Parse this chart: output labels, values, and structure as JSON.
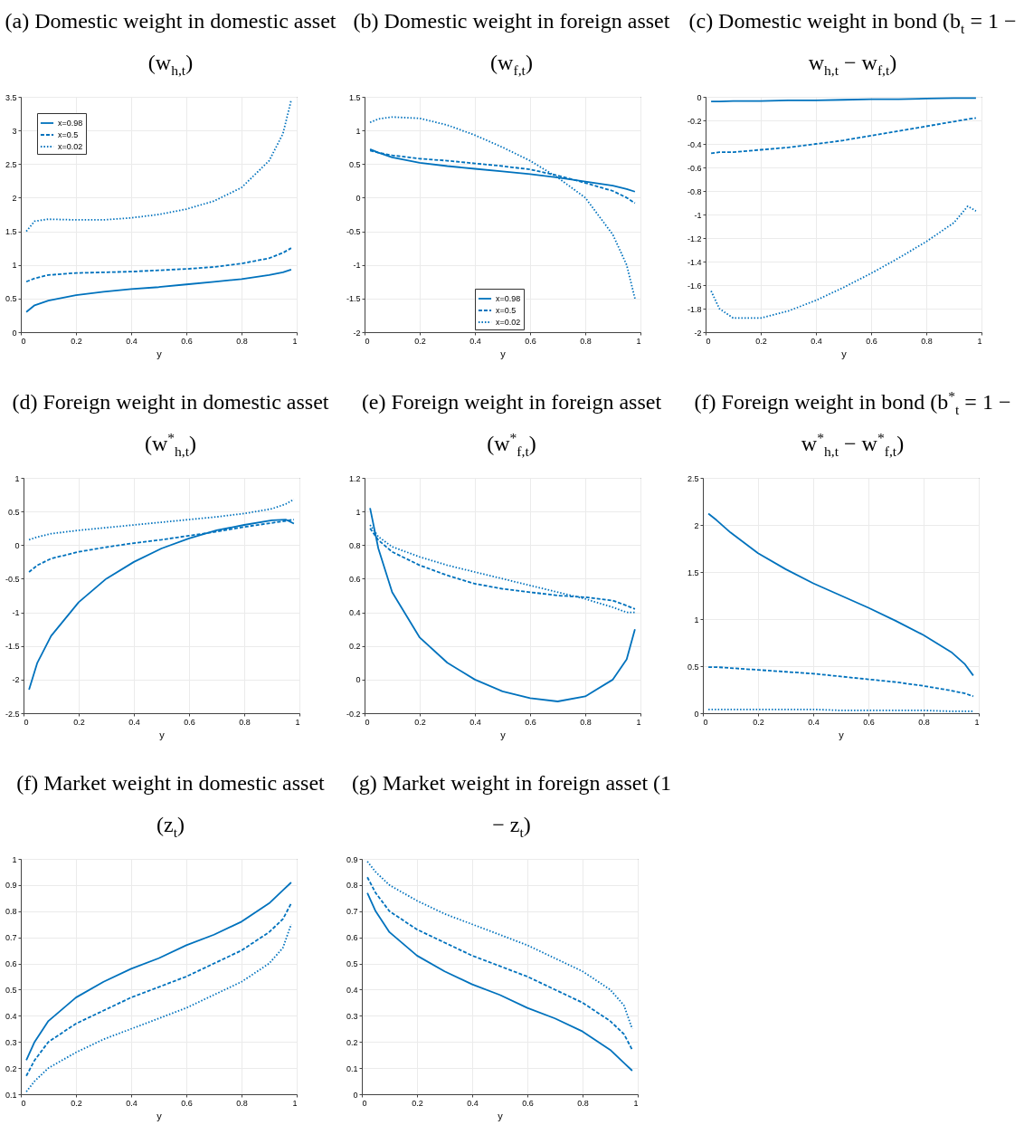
{
  "chart_data": [
    {
      "type": "line",
      "title": "(a) Domestic weight in domestic asset (w$_{h,t}$)",
      "xlabel": "y",
      "x": [
        0.02,
        0.05,
        0.1,
        0.2,
        0.3,
        0.4,
        0.5,
        0.6,
        0.7,
        0.8,
        0.9,
        0.95,
        0.98
      ],
      "xlim": [
        0,
        1
      ],
      "xticks": [
        0,
        0.2,
        0.4,
        0.6,
        0.8,
        1
      ],
      "ylim": [
        0,
        3.5
      ],
      "yticks": [
        0,
        0.5,
        1,
        1.5,
        2,
        2.5,
        3,
        3.5
      ],
      "grid": true,
      "legend": "top left",
      "series": [
        {
          "name": "x=0.98",
          "color": "#0072bd",
          "line_style": "solid",
          "values": [
            0.3,
            0.4,
            0.47,
            0.55,
            0.6,
            0.64,
            0.67,
            0.71,
            0.75,
            0.79,
            0.85,
            0.89,
            0.93
          ]
        },
        {
          "name": "x=0.5",
          "color": "#0072bd",
          "line_style": "dashed",
          "values": [
            0.75,
            0.8,
            0.85,
            0.88,
            0.89,
            0.9,
            0.92,
            0.94,
            0.97,
            1.02,
            1.1,
            1.18,
            1.25
          ]
        },
        {
          "name": "x=0.02",
          "color": "#0072bd",
          "line_style": "dotted",
          "values": [
            1.5,
            1.65,
            1.68,
            1.67,
            1.67,
            1.7,
            1.75,
            1.83,
            1.95,
            2.15,
            2.55,
            2.95,
            3.45
          ]
        }
      ]
    },
    {
      "type": "line",
      "title": "(b) Domestic weight in foreign asset (w$_{f,t}$)",
      "xlabel": "y",
      "x": [
        0.02,
        0.05,
        0.1,
        0.2,
        0.3,
        0.4,
        0.5,
        0.6,
        0.7,
        0.8,
        0.9,
        0.95,
        0.98
      ],
      "xlim": [
        0,
        1
      ],
      "xticks": [
        0,
        0.2,
        0.4,
        0.6,
        0.8,
        1
      ],
      "ylim": [
        -2,
        1.5
      ],
      "yticks": [
        -2,
        -1.5,
        -1,
        -0.5,
        0,
        0.5,
        1,
        1.5
      ],
      "grid": true,
      "legend": "bottom",
      "series": [
        {
          "name": "x=0.98",
          "color": "#0072bd",
          "line_style": "solid",
          "values": [
            0.72,
            0.67,
            0.6,
            0.52,
            0.47,
            0.43,
            0.39,
            0.35,
            0.3,
            0.24,
            0.18,
            0.13,
            0.09
          ]
        },
        {
          "name": "x=0.5",
          "color": "#0072bd",
          "line_style": "dashed",
          "values": [
            0.7,
            0.67,
            0.63,
            0.58,
            0.55,
            0.51,
            0.47,
            0.42,
            0.33,
            0.22,
            0.1,
            0.0,
            -0.08
          ]
        },
        {
          "name": "x=0.02",
          "color": "#0072bd",
          "line_style": "dotted",
          "values": [
            1.12,
            1.17,
            1.2,
            1.18,
            1.08,
            0.93,
            0.75,
            0.55,
            0.3,
            0.0,
            -0.55,
            -1.0,
            -1.5
          ]
        }
      ]
    },
    {
      "type": "line",
      "title": "(c) Domestic weight in bond (b$_{t}$ = 1 − w$_{h,t}$ − w$_{f,t}$)",
      "xlabel": "y",
      "x": [
        0.02,
        0.05,
        0.1,
        0.2,
        0.3,
        0.4,
        0.5,
        0.6,
        0.7,
        0.8,
        0.9,
        0.95,
        0.98
      ],
      "xlim": [
        0,
        1
      ],
      "xticks": [
        0,
        0.2,
        0.4,
        0.6,
        0.8,
        1
      ],
      "ylim": [
        -2,
        0
      ],
      "yticks": [
        -2,
        -1.8,
        -1.6,
        -1.4,
        -1.2,
        -1,
        -0.8,
        -0.6,
        -0.4,
        -0.2,
        0
      ],
      "grid": true,
      "series": [
        {
          "color": "#0072bd",
          "line_style": "solid",
          "values": [
            -0.04,
            -0.04,
            -0.035,
            -0.035,
            -0.03,
            -0.03,
            -0.025,
            -0.02,
            -0.02,
            -0.015,
            -0.01,
            -0.01,
            -0.01
          ]
        },
        {
          "color": "#0072bd",
          "line_style": "dashed",
          "values": [
            -0.48,
            -0.47,
            -0.47,
            -0.45,
            -0.43,
            -0.4,
            -0.37,
            -0.33,
            -0.29,
            -0.25,
            -0.21,
            -0.19,
            -0.18
          ]
        },
        {
          "color": "#0072bd",
          "line_style": "dotted",
          "values": [
            -1.65,
            -1.8,
            -1.88,
            -1.88,
            -1.82,
            -1.73,
            -1.62,
            -1.5,
            -1.37,
            -1.23,
            -1.07,
            -0.93,
            -0.97
          ]
        }
      ]
    },
    {
      "type": "line",
      "title": "(d) Foreign weight in domestic asset (w$^{*}$$_{h,t}$)",
      "xlabel": "y",
      "x": [
        0.02,
        0.05,
        0.1,
        0.2,
        0.3,
        0.4,
        0.5,
        0.6,
        0.7,
        0.8,
        0.9,
        0.95,
        0.98
      ],
      "xlim": [
        0,
        1
      ],
      "xticks": [
        0,
        0.2,
        0.4,
        0.6,
        0.8,
        1
      ],
      "ylim": [
        -2.5,
        1
      ],
      "yticks": [
        -2.5,
        -2,
        -1.5,
        -1,
        -0.5,
        0,
        0.5,
        1
      ],
      "grid": true,
      "series": [
        {
          "color": "#0072bd",
          "line_style": "solid",
          "values": [
            -2.15,
            -1.75,
            -1.35,
            -0.85,
            -0.5,
            -0.25,
            -0.05,
            0.1,
            0.22,
            0.3,
            0.37,
            0.38,
            0.32
          ]
        },
        {
          "color": "#0072bd",
          "line_style": "dashed",
          "values": [
            -0.4,
            -0.3,
            -0.2,
            -0.1,
            -0.03,
            0.03,
            0.08,
            0.14,
            0.2,
            0.27,
            0.33,
            0.36,
            0.38
          ]
        },
        {
          "color": "#0072bd",
          "line_style": "dotted",
          "values": [
            0.08,
            0.12,
            0.17,
            0.22,
            0.26,
            0.3,
            0.34,
            0.38,
            0.42,
            0.47,
            0.54,
            0.61,
            0.68
          ]
        }
      ]
    },
    {
      "type": "line",
      "title": "(e) Foreign weight in foreign asset (w$^{*}$$_{f,t}$)",
      "xlabel": "y",
      "x": [
        0.02,
        0.05,
        0.1,
        0.2,
        0.3,
        0.4,
        0.5,
        0.6,
        0.7,
        0.8,
        0.9,
        0.95,
        0.98
      ],
      "xlim": [
        0,
        1
      ],
      "xticks": [
        0,
        0.2,
        0.4,
        0.6,
        0.8,
        1
      ],
      "ylim": [
        -0.2,
        1.2
      ],
      "yticks": [
        -0.2,
        0,
        0.2,
        0.4,
        0.6,
        0.8,
        1,
        1.2
      ],
      "grid": true,
      "series": [
        {
          "color": "#0072bd",
          "line_style": "solid",
          "values": [
            1.02,
            0.78,
            0.52,
            0.25,
            0.1,
            0.0,
            -0.07,
            -0.11,
            -0.13,
            -0.1,
            0.0,
            0.12,
            0.3
          ]
        },
        {
          "color": "#0072bd",
          "line_style": "dashed",
          "values": [
            0.9,
            0.83,
            0.76,
            0.68,
            0.62,
            0.57,
            0.54,
            0.52,
            0.5,
            0.49,
            0.47,
            0.44,
            0.42
          ]
        },
        {
          "color": "#0072bd",
          "line_style": "dotted",
          "values": [
            0.92,
            0.85,
            0.79,
            0.73,
            0.68,
            0.64,
            0.6,
            0.56,
            0.52,
            0.48,
            0.43,
            0.4,
            0.4
          ]
        }
      ]
    },
    {
      "type": "line",
      "title": "(f) Foreign weight in bond (b$^{*}$$_{t}$ = 1 − w$^{*}$$_{h,t}$ − w$^{*}$$_{f,t}$)",
      "xlabel": "y",
      "x": [
        0.02,
        0.05,
        0.1,
        0.2,
        0.3,
        0.4,
        0.5,
        0.6,
        0.7,
        0.8,
        0.9,
        0.95,
        0.98
      ],
      "xlim": [
        0,
        1
      ],
      "xticks": [
        0,
        0.2,
        0.4,
        0.6,
        0.8,
        1
      ],
      "ylim": [
        0,
        2.5
      ],
      "yticks": [
        0,
        0.5,
        1,
        1.5,
        2,
        2.5
      ],
      "grid": true,
      "series": [
        {
          "color": "#0072bd",
          "line_style": "solid",
          "values": [
            2.12,
            2.05,
            1.92,
            1.7,
            1.53,
            1.38,
            1.25,
            1.12,
            0.98,
            0.83,
            0.65,
            0.52,
            0.4
          ]
        },
        {
          "color": "#0072bd",
          "line_style": "dashed",
          "values": [
            0.49,
            0.49,
            0.48,
            0.46,
            0.44,
            0.42,
            0.39,
            0.36,
            0.33,
            0.29,
            0.24,
            0.21,
            0.18
          ]
        },
        {
          "color": "#0072bd",
          "line_style": "dotted",
          "values": [
            0.04,
            0.04,
            0.04,
            0.04,
            0.04,
            0.04,
            0.03,
            0.03,
            0.03,
            0.03,
            0.02,
            0.02,
            0.02
          ]
        }
      ]
    },
    {
      "type": "line",
      "title": "(f) Market weight in domestic asset (z$_{t}$)",
      "xlabel": "y",
      "x": [
        0.02,
        0.05,
        0.1,
        0.2,
        0.3,
        0.4,
        0.5,
        0.6,
        0.7,
        0.8,
        0.9,
        0.95,
        0.98
      ],
      "xlim": [
        0,
        1
      ],
      "xticks": [
        0,
        0.2,
        0.4,
        0.6,
        0.8,
        1
      ],
      "ylim": [
        0.1,
        1
      ],
      "yticks": [
        0.1,
        0.2,
        0.3,
        0.4,
        0.5,
        0.6,
        0.7,
        0.8,
        0.9,
        1
      ],
      "grid": true,
      "series": [
        {
          "color": "#0072bd",
          "line_style": "solid",
          "values": [
            0.23,
            0.3,
            0.38,
            0.47,
            0.53,
            0.58,
            0.62,
            0.67,
            0.71,
            0.76,
            0.83,
            0.88,
            0.91
          ]
        },
        {
          "color": "#0072bd",
          "line_style": "dashed",
          "values": [
            0.17,
            0.23,
            0.3,
            0.37,
            0.42,
            0.47,
            0.51,
            0.55,
            0.6,
            0.65,
            0.72,
            0.77,
            0.83
          ]
        },
        {
          "color": "#0072bd",
          "line_style": "dotted",
          "values": [
            0.11,
            0.15,
            0.2,
            0.26,
            0.31,
            0.35,
            0.39,
            0.43,
            0.48,
            0.53,
            0.6,
            0.66,
            0.75
          ]
        }
      ]
    },
    {
      "type": "line",
      "title": "(g) Market weight in foreign asset (1 − z$_{t}$)",
      "xlabel": "y",
      "x": [
        0.02,
        0.05,
        0.1,
        0.2,
        0.3,
        0.4,
        0.5,
        0.6,
        0.7,
        0.8,
        0.9,
        0.95,
        0.98
      ],
      "xlim": [
        0,
        1
      ],
      "xticks": [
        0,
        0.2,
        0.4,
        0.6,
        0.8,
        1
      ],
      "ylim": [
        0,
        0.9
      ],
      "yticks": [
        0,
        0.1,
        0.2,
        0.3,
        0.4,
        0.5,
        0.6,
        0.7,
        0.8,
        0.9
      ],
      "grid": true,
      "series": [
        {
          "color": "#0072bd",
          "line_style": "solid",
          "values": [
            0.77,
            0.7,
            0.62,
            0.53,
            0.47,
            0.42,
            0.38,
            0.33,
            0.29,
            0.24,
            0.17,
            0.12,
            0.09
          ]
        },
        {
          "color": "#0072bd",
          "line_style": "dashed",
          "values": [
            0.83,
            0.77,
            0.7,
            0.63,
            0.58,
            0.53,
            0.49,
            0.45,
            0.4,
            0.35,
            0.28,
            0.23,
            0.17
          ]
        },
        {
          "color": "#0072bd",
          "line_style": "dotted",
          "values": [
            0.89,
            0.85,
            0.8,
            0.74,
            0.69,
            0.65,
            0.61,
            0.57,
            0.52,
            0.47,
            0.4,
            0.34,
            0.25
          ]
        }
      ]
    }
  ]
}
